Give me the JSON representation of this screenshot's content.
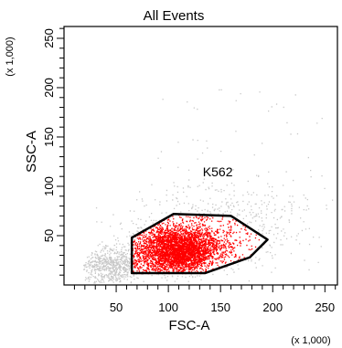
{
  "chart_data": {
    "type": "scatter",
    "title": "All Events",
    "xlabel": "FSC-A",
    "ylabel": "SSC-A",
    "x_unit": "(x 1,000)",
    "y_unit": "(x 1,000)",
    "xlim": [
      0,
      262
    ],
    "ylim": [
      0,
      262
    ],
    "x_ticks": [
      50,
      100,
      150,
      200,
      250
    ],
    "y_ticks": [
      50,
      100,
      150,
      200,
      250
    ],
    "grid": false,
    "gate": {
      "name": "K562",
      "color": "#000000",
      "fill_color": "#ff0000",
      "vertices": [
        [
          65,
          12
        ],
        [
          65,
          48
        ],
        [
          85,
          60
        ],
        [
          105,
          72
        ],
        [
          160,
          70
        ],
        [
          195,
          46
        ],
        [
          178,
          28
        ],
        [
          135,
          12
        ]
      ],
      "label_position": [
        133,
        110
      ]
    },
    "populations": [
      {
        "role": "in-gate",
        "color": "#ff0000",
        "center": [
          108,
          36
        ],
        "spread": [
          20,
          12
        ],
        "count": 6000
      },
      {
        "role": "out-of-gate",
        "color": "#c8c8c8",
        "center": [
          45,
          20
        ],
        "spread": [
          14,
          9
        ],
        "count": 700
      },
      {
        "role": "out-of-gate",
        "color": "#c8c8c8",
        "center": [
          150,
          60
        ],
        "spread": [
          45,
          22
        ],
        "count": 600
      }
    ]
  }
}
